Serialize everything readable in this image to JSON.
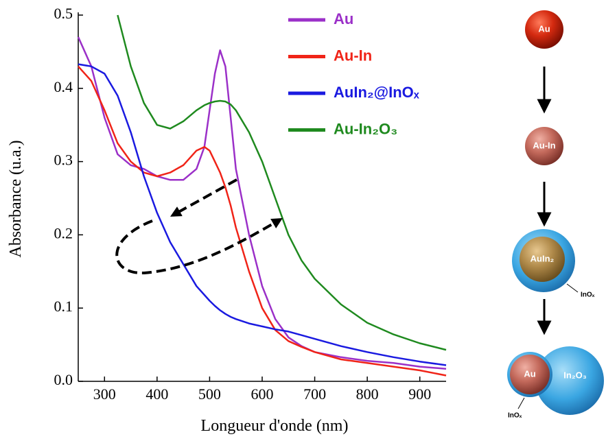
{
  "chart_data": {
    "type": "line",
    "xlabel": "Longueur d'onde (nm)",
    "ylabel": "Absorbance (u.a.)",
    "xlim": [
      250,
      950
    ],
    "xticks": [
      300,
      400,
      500,
      600,
      700,
      800,
      900
    ],
    "ylim": [
      0,
      0.5
    ],
    "yticks": [
      {
        "value": 0,
        "label": "0.0"
      },
      0.1,
      0.2,
      0.3,
      0.4,
      0.5
    ],
    "x": [
      250,
      275,
      300,
      325,
      350,
      375,
      400,
      425,
      450,
      475,
      490,
      500,
      510,
      520,
      530,
      540,
      550,
      575,
      600,
      625,
      650,
      675,
      700,
      750,
      800,
      850,
      900,
      950
    ],
    "series": [
      {
        "name": "Au",
        "color": "#9b30c8",
        "values": [
          0.47,
          0.43,
          0.36,
          0.31,
          0.295,
          0.29,
          0.28,
          0.275,
          0.275,
          0.29,
          0.32,
          0.37,
          0.42,
          0.452,
          0.43,
          0.36,
          0.29,
          0.2,
          0.13,
          0.085,
          0.06,
          0.048,
          0.04,
          0.033,
          0.028,
          0.025,
          0.02,
          0.017
        ]
      },
      {
        "name": "Au-In",
        "color": "#f02418",
        "values": [
          0.43,
          0.41,
          0.37,
          0.325,
          0.3,
          0.285,
          0.28,
          0.285,
          0.295,
          0.315,
          0.32,
          0.315,
          0.3,
          0.285,
          0.265,
          0.24,
          0.21,
          0.15,
          0.1,
          0.07,
          0.055,
          0.047,
          0.04,
          0.03,
          0.025,
          0.02,
          0.015,
          0.008
        ]
      },
      {
        "name": "AuIn₂@InOₓ",
        "color": "#1a1ae0",
        "values": [
          0.433,
          0.43,
          0.42,
          0.39,
          0.34,
          0.28,
          0.23,
          0.19,
          0.16,
          0.13,
          0.118,
          0.11,
          0.103,
          0.097,
          0.092,
          0.088,
          0.085,
          0.079,
          0.075,
          0.071,
          0.068,
          0.063,
          0.058,
          0.048,
          0.04,
          0.033,
          0.027,
          0.022
        ]
      },
      {
        "name": "Au-In₂O₃",
        "color": "#1f8a1f",
        "values": [
          null,
          null,
          null,
          0.5,
          0.43,
          0.38,
          0.35,
          0.345,
          0.355,
          0.37,
          0.377,
          0.38,
          0.382,
          0.383,
          0.382,
          0.378,
          0.37,
          0.34,
          0.3,
          0.25,
          0.2,
          0.165,
          0.14,
          0.105,
          0.08,
          0.064,
          0.052,
          0.043
        ]
      }
    ]
  },
  "diagram": {
    "nodes": [
      {
        "label": "Au"
      },
      {
        "label": "Au-In"
      },
      {
        "label": "AuIn₂",
        "shell": "InOₓ"
      },
      {
        "label": "Au",
        "partner": "In₂O₃",
        "shell": "InOₓ"
      }
    ]
  }
}
